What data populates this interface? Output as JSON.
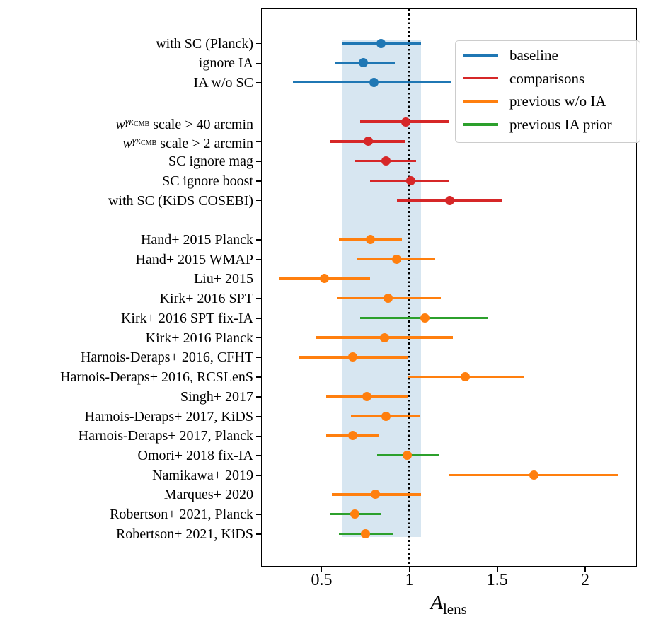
{
  "palette": {
    "blue": "#1f77b4",
    "red": "#d62728",
    "orange": "#ff7f0e",
    "green": "#2ca02c",
    "band_fill": "rgba(31,119,180,0.18)",
    "axis": "#000000",
    "legend_border": "#cccccc"
  },
  "chart_data": {
    "type": "scatter",
    "subtype": "horizontal-errorbar-forest-plot",
    "title": "",
    "xlabel": "A_lens",
    "xlabel_base": "A",
    "xlabel_sub": "lens",
    "xlim": [
      0.16,
      2.29
    ],
    "x_ticks": [
      0.5,
      1.0,
      1.5,
      2.0
    ],
    "x_tick_labels": [
      "0.5",
      "1",
      "1.5",
      "2"
    ],
    "grid": false,
    "reference_line_x": 1.0,
    "reference_line_style": "dotted-black",
    "shaded_band": {
      "lo": 0.62,
      "hi": 1.07,
      "meaning": "baseline 68% interval"
    },
    "legend": [
      {
        "label": "baseline",
        "color": "blue"
      },
      {
        "label": "comparisons",
        "color": "red"
      },
      {
        "label": "previous w/o IA",
        "color": "orange"
      },
      {
        "label": "previous IA prior",
        "color": "green"
      }
    ],
    "legend_position": "upper right",
    "groups": [
      {
        "name": "baseline-variants",
        "rows": [
          {
            "label": "with SC (Planck)",
            "value": 0.84,
            "lo": 0.62,
            "hi": 1.07,
            "bar_color": "blue",
            "marker_color": "blue"
          },
          {
            "label": "ignore IA",
            "value": 0.74,
            "lo": 0.58,
            "hi": 0.92,
            "bar_color": "blue",
            "marker_color": "blue"
          },
          {
            "label": "IA w/o SC",
            "value": 0.8,
            "lo": 0.34,
            "hi": 1.24,
            "bar_color": "blue",
            "marker_color": "blue"
          }
        ]
      },
      {
        "name": "comparisons",
        "rows": [
          {
            "label": "w^γκ^CMB scale > 40 arcmin",
            "label_parts": {
              "base": "w",
              "sup": "γκ",
              "supsup": "CMB",
              "rest": " scale > 40 arcmin"
            },
            "value": 0.98,
            "lo": 0.72,
            "hi": 1.23,
            "bar_color": "red",
            "marker_color": "red"
          },
          {
            "label": "w^γκ^CMB scale > 2 arcmin",
            "label_parts": {
              "base": "w",
              "sup": "γκ",
              "supsup": "CMB",
              "rest": " scale > 2 arcmin"
            },
            "value": 0.77,
            "lo": 0.55,
            "hi": 0.98,
            "bar_color": "red",
            "marker_color": "red"
          },
          {
            "label": "SC ignore mag",
            "value": 0.87,
            "lo": 0.69,
            "hi": 1.04,
            "bar_color": "red",
            "marker_color": "red"
          },
          {
            "label": "SC ignore boost",
            "value": 1.01,
            "lo": 0.78,
            "hi": 1.23,
            "bar_color": "red",
            "marker_color": "red"
          },
          {
            "label": "with SC (KiDS COSEBI)",
            "value": 1.23,
            "lo": 0.93,
            "hi": 1.53,
            "bar_color": "red",
            "marker_color": "red"
          }
        ]
      },
      {
        "name": "previous-measurements",
        "rows": [
          {
            "label": "Hand+ 2015 Planck",
            "value": 0.78,
            "lo": 0.6,
            "hi": 0.96,
            "bar_color": "orange",
            "marker_color": "orange"
          },
          {
            "label": "Hand+ 2015 WMAP",
            "value": 0.93,
            "lo": 0.7,
            "hi": 1.15,
            "bar_color": "orange",
            "marker_color": "orange"
          },
          {
            "label": "Liu+ 2015",
            "value": 0.52,
            "lo": 0.26,
            "hi": 0.78,
            "bar_color": "orange",
            "marker_color": "orange"
          },
          {
            "label": "Kirk+ 2016 SPT",
            "value": 0.88,
            "lo": 0.59,
            "hi": 1.18,
            "bar_color": "orange",
            "marker_color": "orange"
          },
          {
            "label": "Kirk+ 2016 SPT fix-IA",
            "value": 1.09,
            "lo": 0.72,
            "hi": 1.45,
            "bar_color": "green",
            "marker_color": "orange"
          },
          {
            "label": "Kirk+ 2016 Planck",
            "value": 0.86,
            "lo": 0.47,
            "hi": 1.25,
            "bar_color": "orange",
            "marker_color": "orange"
          },
          {
            "label": "Harnois-Deraps+ 2016, CFHT",
            "value": 0.68,
            "lo": 0.37,
            "hi": 0.99,
            "bar_color": "orange",
            "marker_color": "orange"
          },
          {
            "label": "Harnois-Deraps+ 2016, RCSLenS",
            "value": 1.32,
            "lo": 0.99,
            "hi": 1.65,
            "bar_color": "orange",
            "marker_color": "orange"
          },
          {
            "label": "Singh+ 2017",
            "value": 0.76,
            "lo": 0.53,
            "hi": 0.99,
            "bar_color": "orange",
            "marker_color": "orange"
          },
          {
            "label": "Harnois-Deraps+ 2017, KiDS",
            "value": 0.87,
            "lo": 0.67,
            "hi": 1.06,
            "bar_color": "orange",
            "marker_color": "orange"
          },
          {
            "label": "Harnois-Deraps+ 2017, Planck",
            "value": 0.68,
            "lo": 0.53,
            "hi": 0.83,
            "bar_color": "orange",
            "marker_color": "orange"
          },
          {
            "label": "Omori+ 2018 fix-IA",
            "value": 0.99,
            "lo": 0.82,
            "hi": 1.17,
            "bar_color": "green",
            "marker_color": "orange"
          },
          {
            "label": "Namikawa+ 2019",
            "value": 1.71,
            "lo": 1.23,
            "hi": 2.19,
            "bar_color": "orange",
            "marker_color": "orange"
          },
          {
            "label": "Marques+ 2020",
            "value": 0.81,
            "lo": 0.56,
            "hi": 1.07,
            "bar_color": "orange",
            "marker_color": "orange"
          },
          {
            "label": "Robertson+ 2021, Planck",
            "value": 0.69,
            "lo": 0.55,
            "hi": 0.84,
            "bar_color": "green",
            "marker_color": "orange"
          },
          {
            "label": "Robertson+ 2021, KiDS",
            "value": 0.75,
            "lo": 0.6,
            "hi": 0.91,
            "bar_color": "green",
            "marker_color": "orange"
          }
        ]
      }
    ]
  }
}
